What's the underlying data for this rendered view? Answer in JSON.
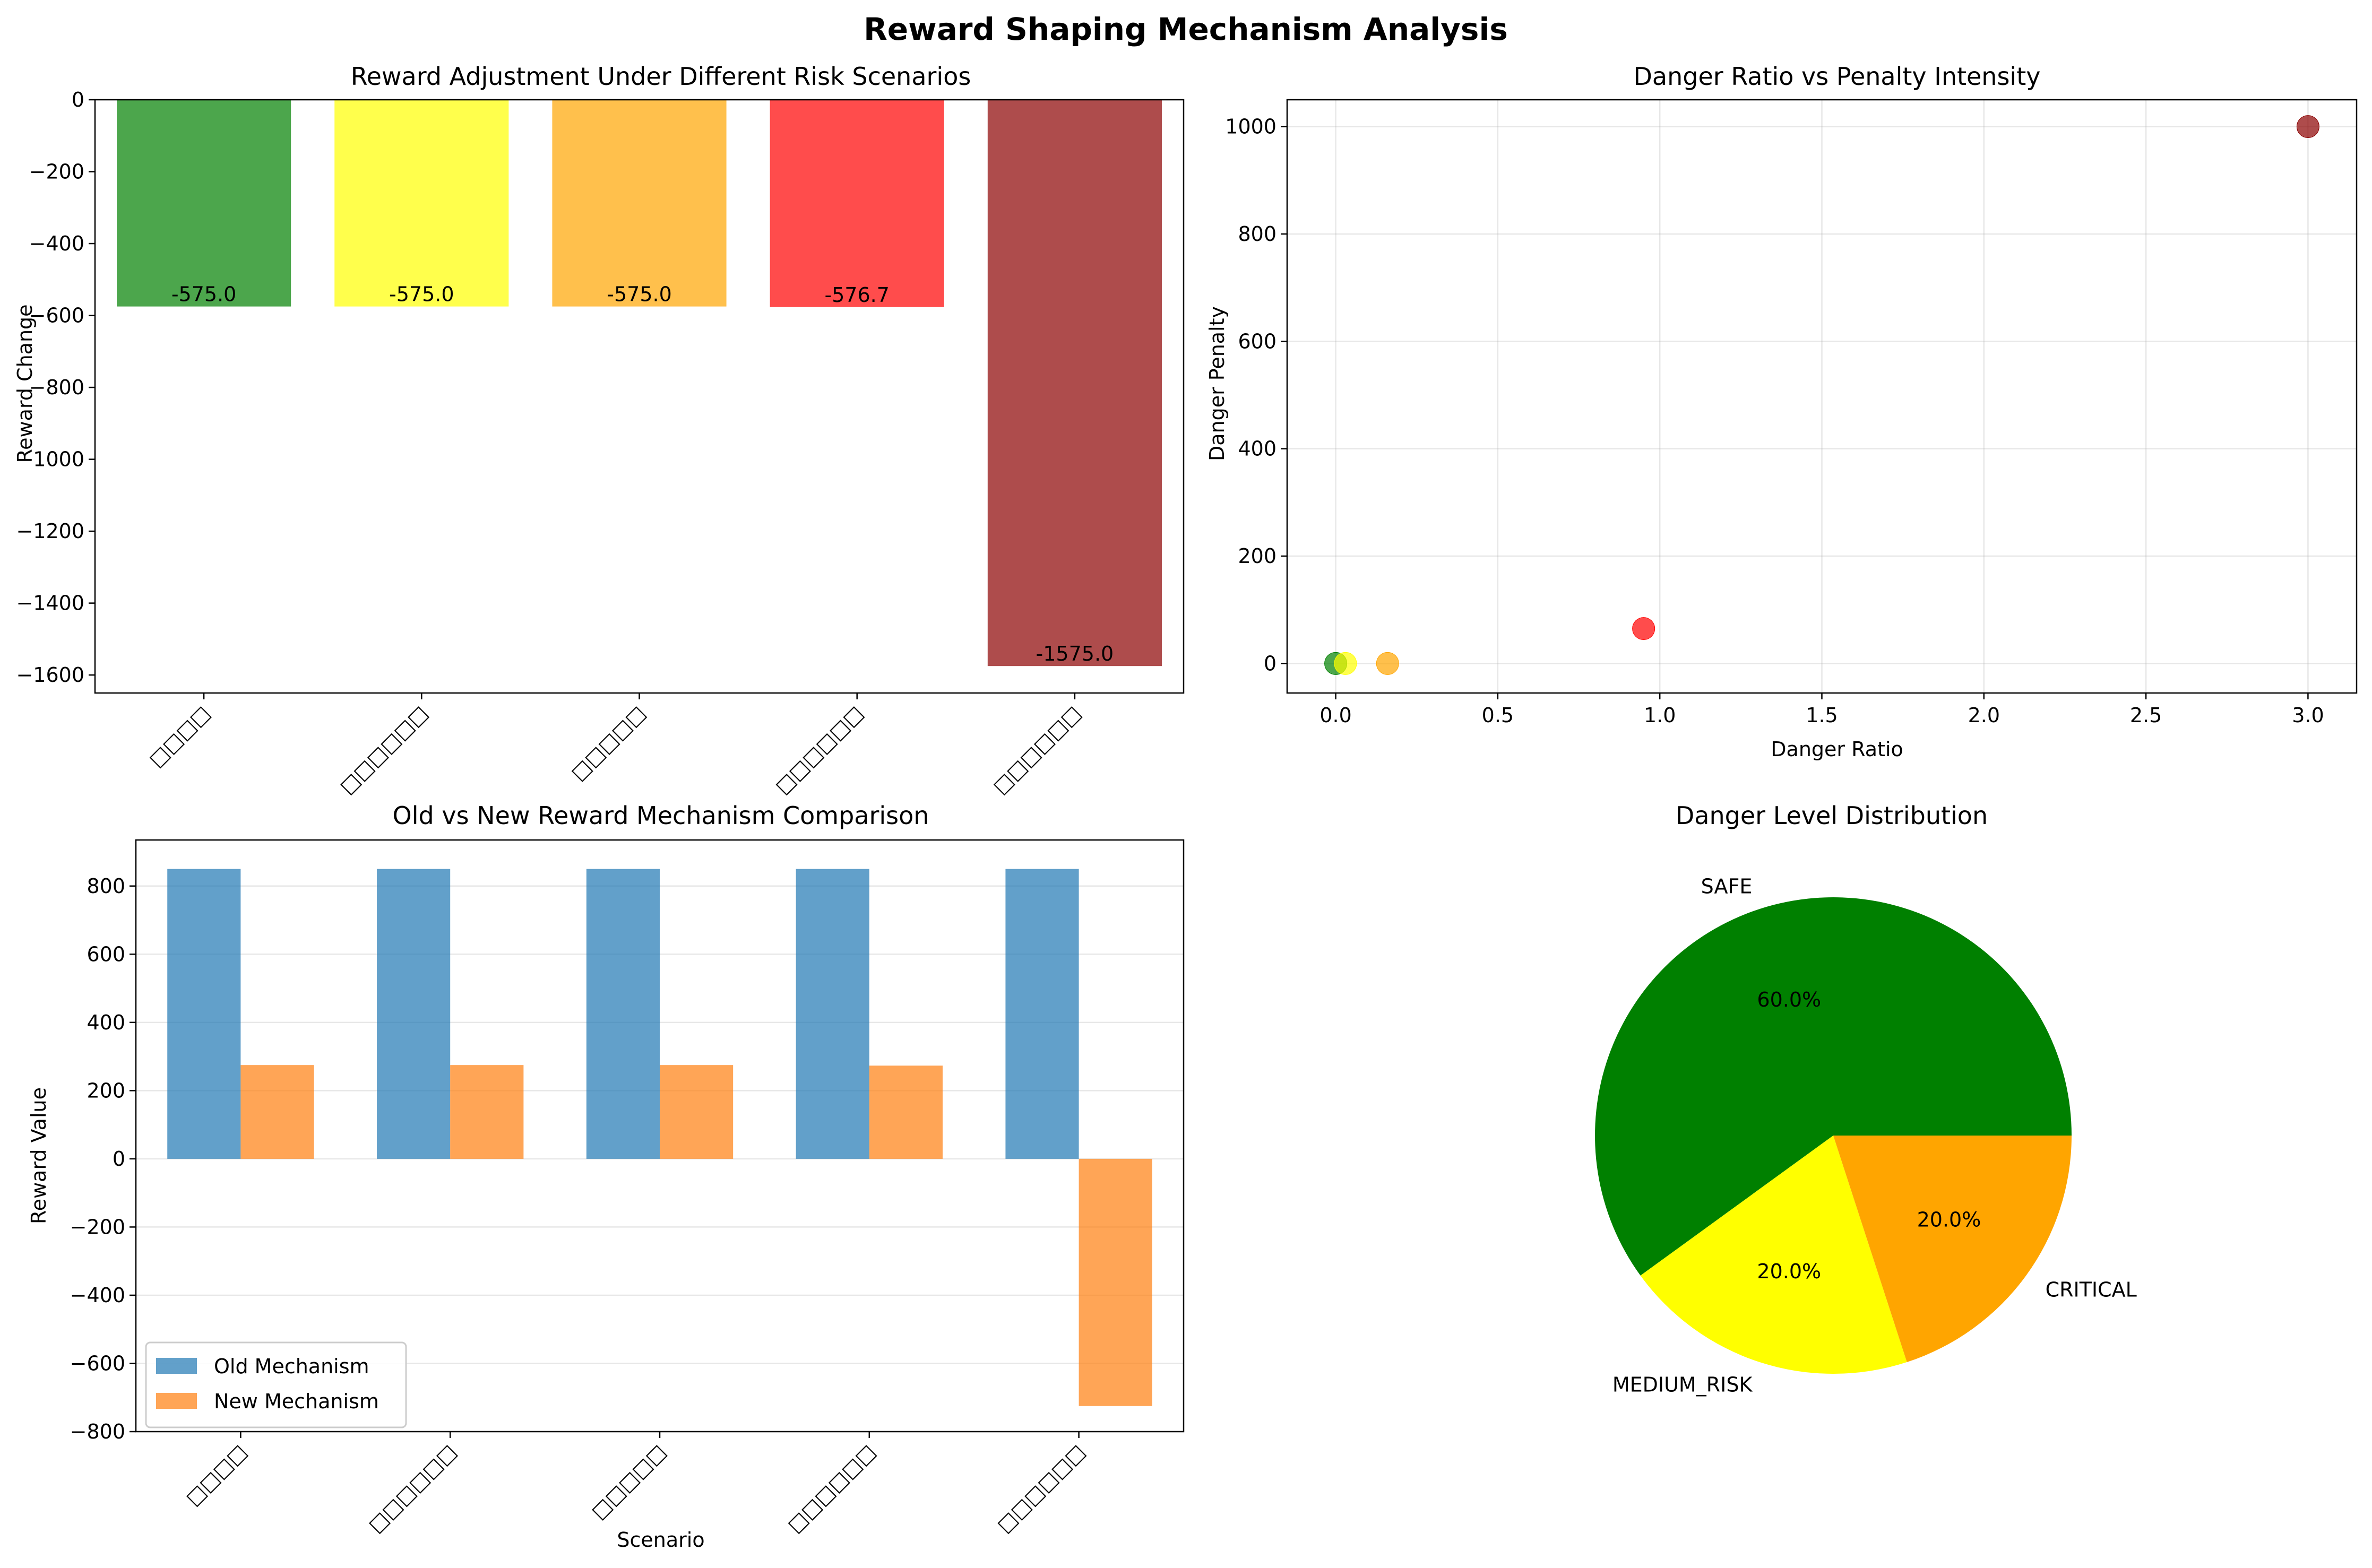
{
  "figure": {
    "suptitle": "Reward Shaping Mechanism Analysis"
  },
  "colors": {
    "safe": "#008000",
    "low": "#ffff00",
    "medium": "#ffa500",
    "high": "#ff0000",
    "critical": "#8b0000",
    "old": "#1f77b4",
    "new": "#ff7f0e",
    "grid": "#b0b0b0"
  },
  "chart_data": [
    {
      "type": "bar",
      "title": "Reward Adjustment Under Different Risk Scenarios",
      "xlabel": "",
      "ylabel": "Reward Change",
      "categories": [
        "□□□□",
        "□□□□□□",
        "□□□□□",
        "□□□□□□",
        "□□□□□□"
      ],
      "values": [
        -575.0,
        -575.0,
        -575.0,
        -576.7,
        -1575.0
      ],
      "data_labels": [
        "-575.0",
        "-575.0",
        "-575.0",
        "-576.7",
        "-1575.0"
      ],
      "bar_colors": [
        "#008000",
        "#ffff00",
        "#ffa500",
        "#ff0000",
        "#8b0000"
      ],
      "ylim": [
        -1650,
        0
      ],
      "yticks": [
        0,
        -200,
        -400,
        -600,
        -800,
        -1000,
        -1200,
        -1400,
        -1600
      ],
      "ytick_labels": [
        "0",
        "−200",
        "−400",
        "−600",
        "−800",
        "−1000",
        "−1200",
        "−1400",
        "−1600"
      ],
      "grid": false
    },
    {
      "type": "scatter",
      "title": "Danger Ratio vs Penalty Intensity",
      "xlabel": "Danger Ratio",
      "ylabel": "Danger Penalty",
      "points": [
        {
          "x": 0.0,
          "y": 0,
          "color": "#008000"
        },
        {
          "x": 0.03,
          "y": 0,
          "color": "#ffff00"
        },
        {
          "x": 0.16,
          "y": 0,
          "color": "#ffa500"
        },
        {
          "x": 0.95,
          "y": 65,
          "color": "#ff0000"
        },
        {
          "x": 3.0,
          "y": 1000,
          "color": "#8b0000"
        }
      ],
      "xlim": [
        -0.15,
        3.15
      ],
      "ylim": [
        -55,
        1050
      ],
      "xticks": [
        0.0,
        0.5,
        1.0,
        1.5,
        2.0,
        2.5,
        3.0
      ],
      "xtick_labels": [
        "0.0",
        "0.5",
        "1.0",
        "1.5",
        "2.0",
        "2.5",
        "3.0"
      ],
      "yticks": [
        0,
        200,
        400,
        600,
        800,
        1000
      ],
      "ytick_labels": [
        "0",
        "200",
        "400",
        "600",
        "800",
        "1000"
      ],
      "grid": true
    },
    {
      "type": "bar",
      "title": "Old vs New Reward Mechanism Comparison",
      "xlabel": "Scenario",
      "ylabel": "Reward Value",
      "categories": [
        "□□□□",
        "□□□□□□",
        "□□□□□",
        "□□□□□□",
        "□□□□□□"
      ],
      "series": [
        {
          "name": "Old Mechanism",
          "values": [
            850,
            850,
            850,
            850,
            850
          ],
          "color": "#1f77b4"
        },
        {
          "name": "New Mechanism",
          "values": [
            275,
            275,
            275,
            273.3,
            -725
          ],
          "color": "#ff7f0e"
        }
      ],
      "ylim": [
        -800,
        935
      ],
      "yticks": [
        800,
        600,
        400,
        200,
        0,
        -200,
        -400,
        -600,
        -800
      ],
      "ytick_labels": [
        "800",
        "600",
        "400",
        "200",
        "0",
        "−200",
        "−400",
        "−600",
        "−800"
      ],
      "legend_position": "lower-left",
      "grid": true
    },
    {
      "type": "pie",
      "title": "Danger Level Distribution",
      "slices": [
        {
          "label": "SAFE",
          "value": 60.0,
          "pct_label": "60.0%",
          "color": "#008000"
        },
        {
          "label": "MEDIUM_RISK",
          "value": 20.0,
          "pct_label": "20.0%",
          "color": "#ffff00"
        },
        {
          "label": "CRITICAL",
          "value": 20.0,
          "pct_label": "20.0%",
          "color": "#ffa500"
        }
      ]
    }
  ]
}
